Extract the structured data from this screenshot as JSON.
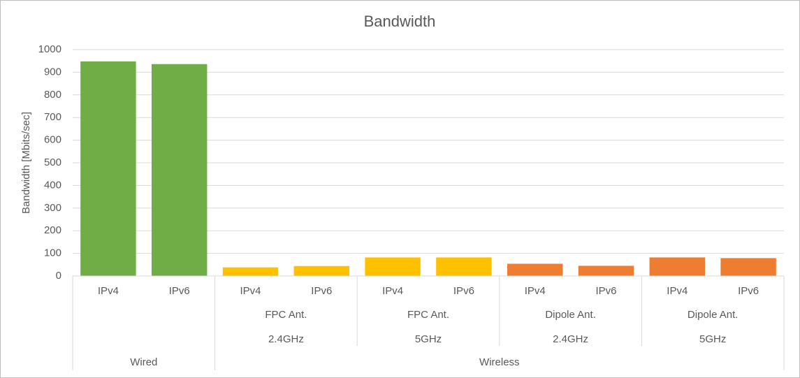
{
  "chart_data": {
    "type": "bar",
    "title": "Bandwidth",
    "y_label": "Bandwidth [Mbits/sec]",
    "ylim": [
      0,
      1000
    ],
    "yticks": [
      0,
      100,
      200,
      300,
      400,
      500,
      600,
      700,
      800,
      900,
      1000
    ],
    "grid": true,
    "groups": [
      {
        "name": "Wired",
        "subgroups": [
          {
            "labels": [],
            "color": "#70ad47",
            "categories": [
              "IPv4",
              "IPv6"
            ],
            "values": [
              948,
              936
            ]
          }
        ]
      },
      {
        "name": "Wireless",
        "subgroups": [
          {
            "labels": [
              "FPC Ant.",
              "2.4GHz"
            ],
            "color": "#ffc000",
            "categories": [
              "IPv4",
              "IPv6"
            ],
            "values": [
              38,
              44
            ]
          },
          {
            "labels": [
              "FPC Ant.",
              "5GHz"
            ],
            "color": "#ffc000",
            "categories": [
              "IPv4",
              "IPv6"
            ],
            "values": [
              82,
              82
            ]
          },
          {
            "labels": [
              "Dipole Ant.",
              "2.4GHz"
            ],
            "color": "#ed7d31",
            "categories": [
              "IPv4",
              "IPv6"
            ],
            "values": [
              54,
              45
            ]
          },
          {
            "labels": [
              "Dipole Ant.",
              "5GHz"
            ],
            "color": "#ed7d31",
            "categories": [
              "IPv4",
              "IPv6"
            ],
            "values": [
              82,
              79
            ]
          }
        ]
      }
    ]
  }
}
